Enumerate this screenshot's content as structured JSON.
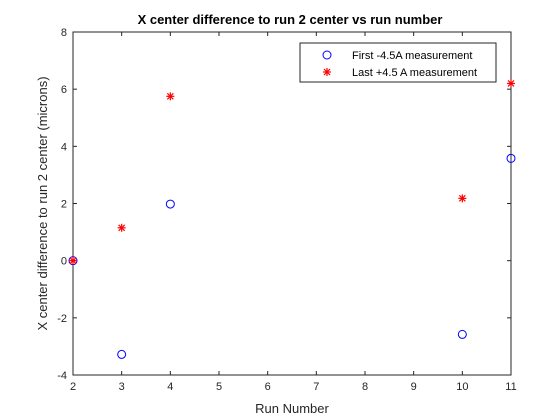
{
  "chart_data": {
    "type": "scatter",
    "title": "X center difference to run 2 center vs run number",
    "xlabel": "Run Number",
    "ylabel": "X center difference to run 2 center (microns)",
    "xlim": [
      2,
      11
    ],
    "ylim": [
      -4,
      8
    ],
    "xticks": [
      "2",
      "3",
      "4",
      "5",
      "6",
      "7",
      "8",
      "9",
      "10",
      "11"
    ],
    "yticks": [
      "-4",
      "-2",
      "0",
      "2",
      "4",
      "6",
      "8"
    ],
    "grid": false,
    "legend_location": "top-right",
    "series": [
      {
        "name": "First -4.5A measurement",
        "marker": "circle",
        "color": "#0000ff",
        "x": [
          2,
          3,
          4,
          10,
          11
        ],
        "y": [
          0,
          -3.28,
          1.98,
          -2.58,
          3.58
        ]
      },
      {
        "name": "Last +4.5 A measurement",
        "marker": "asterisk",
        "color": "#ff0000",
        "x": [
          2,
          3,
          4,
          10,
          11
        ],
        "y": [
          0,
          1.15,
          5.75,
          2.18,
          6.2
        ]
      }
    ]
  }
}
